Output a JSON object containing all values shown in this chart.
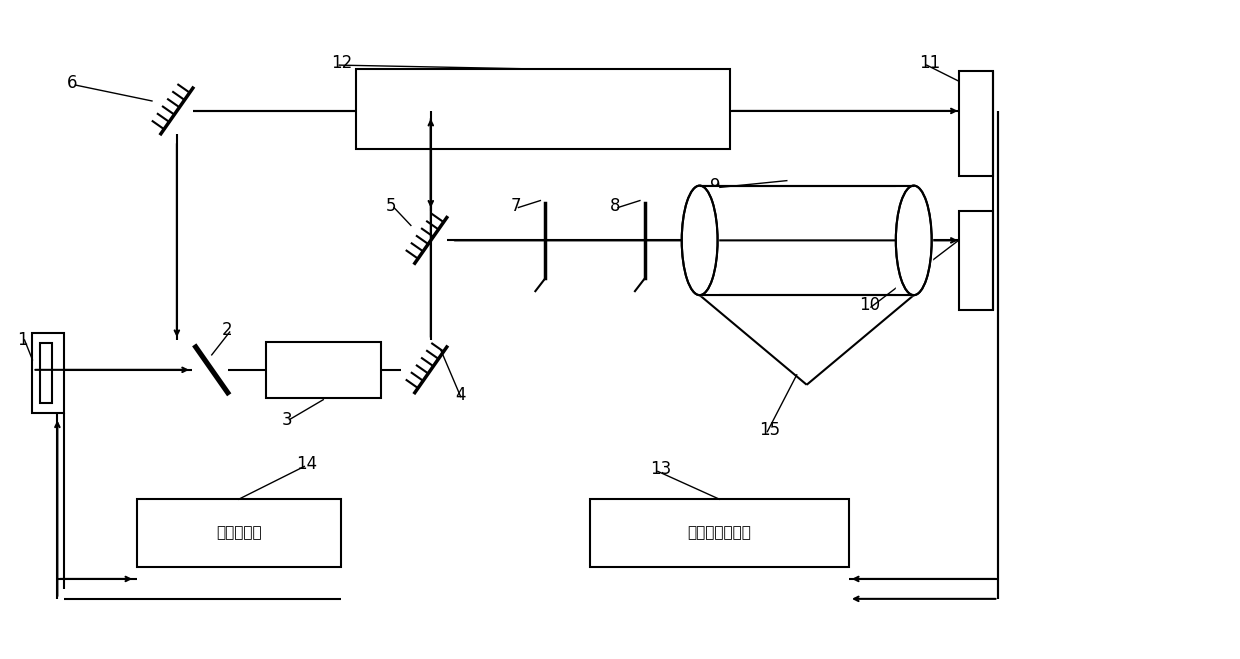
{
  "fig_w": 12.4,
  "fig_h": 6.59,
  "box14_label": "信号调制器",
  "box13_label": "数据采集处理器",
  "lw": 1.5,
  "lw_thick": 2.5,
  "fontsize_label": 11,
  "fontsize_chinese": 11
}
